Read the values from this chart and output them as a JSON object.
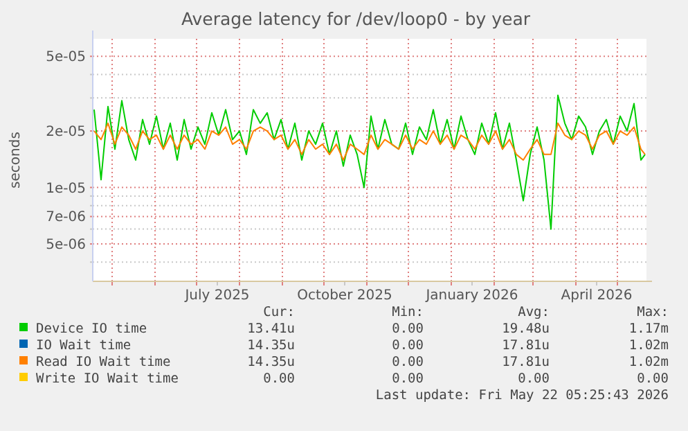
{
  "chart_data": {
    "type": "line",
    "title": "Average latency for /dev/loop0 - by year",
    "ylabel": "seconds",
    "log": "y",
    "grid": true,
    "legend": "bottom",
    "xlim": [
      "2025-04-17",
      "2026-05-22"
    ],
    "ylim": [
      3.16e-06,
      6.2e-05
    ],
    "yticks": [
      {
        "value": 4e-06,
        "label": null
      },
      {
        "value": 5e-06,
        "label": "5e-06"
      },
      {
        "value": 6e-06,
        "label": null
      },
      {
        "value": 7e-06,
        "label": "7e-06"
      },
      {
        "value": 8e-06,
        "label": null
      },
      {
        "value": 9e-06,
        "label": null
      },
      {
        "value": 1e-05,
        "label": "1e-05"
      },
      {
        "value": 2e-05,
        "label": "2e-05"
      },
      {
        "value": 3e-05,
        "label": null
      },
      {
        "value": 4e-05,
        "label": null
      },
      {
        "value": 5e-05,
        "label": "5e-05"
      }
    ],
    "xticks": [
      {
        "value": "2025-05-01",
        "label": null
      },
      {
        "value": "2025-06-01",
        "label": null
      },
      {
        "value": "2025-07-01",
        "label": null
      },
      {
        "value": "2025-07-16",
        "label": "July 2025"
      },
      {
        "value": "2025-08-01",
        "label": null
      },
      {
        "value": "2025-09-01",
        "label": null
      },
      {
        "value": "2025-10-01",
        "label": null
      },
      {
        "value": "2025-10-16",
        "label": "October 2025"
      },
      {
        "value": "2025-11-01",
        "label": null
      },
      {
        "value": "2025-12-01",
        "label": null
      },
      {
        "value": "2026-01-01",
        "label": null
      },
      {
        "value": "2026-01-16",
        "label": "January 2026"
      },
      {
        "value": "2026-02-01",
        "label": null
      },
      {
        "value": "2026-03-01",
        "label": null
      },
      {
        "value": "2026-04-01",
        "label": null
      },
      {
        "value": "2026-04-16",
        "label": "April 2026"
      },
      {
        "value": "2026-05-01",
        "label": null
      }
    ],
    "x": [
      "2025-04-18",
      "2025-04-23",
      "2025-04-28",
      "2025-05-03",
      "2025-05-08",
      "2025-05-13",
      "2025-05-18",
      "2025-05-23",
      "2025-05-28",
      "2025-06-02",
      "2025-06-07",
      "2025-06-12",
      "2025-06-17",
      "2025-06-22",
      "2025-06-27",
      "2025-07-02",
      "2025-07-07",
      "2025-07-12",
      "2025-07-17",
      "2025-07-22",
      "2025-07-27",
      "2025-08-01",
      "2025-08-06",
      "2025-08-11",
      "2025-08-16",
      "2025-08-21",
      "2025-08-26",
      "2025-08-31",
      "2025-09-05",
      "2025-09-10",
      "2025-09-15",
      "2025-09-20",
      "2025-09-25",
      "2025-09-30",
      "2025-10-05",
      "2025-10-10",
      "2025-10-15",
      "2025-10-20",
      "2025-10-25",
      "2025-10-30",
      "2025-11-04",
      "2025-11-09",
      "2025-11-14",
      "2025-11-19",
      "2025-11-24",
      "2025-11-29",
      "2025-12-04",
      "2025-12-09",
      "2025-12-14",
      "2025-12-19",
      "2025-12-24",
      "2025-12-29",
      "2026-01-03",
      "2026-01-08",
      "2026-01-13",
      "2026-01-18",
      "2026-01-23",
      "2026-01-28",
      "2026-02-02",
      "2026-02-07",
      "2026-02-12",
      "2026-02-17",
      "2026-02-22",
      "2026-02-27",
      "2026-03-04",
      "2026-03-09",
      "2026-03-14",
      "2026-03-19",
      "2026-03-24",
      "2026-03-29",
      "2026-04-03",
      "2026-04-08",
      "2026-04-13",
      "2026-04-18",
      "2026-04-23",
      "2026-04-28",
      "2026-05-03",
      "2026-05-08",
      "2026-05-13",
      "2026-05-18",
      "2026-05-21"
    ],
    "series": [
      {
        "name": "Device IO time",
        "color": "#00cc00",
        "values": [
          2.6e-05,
          1.1e-05,
          2.7e-05,
          1.6e-05,
          2.9e-05,
          1.8e-05,
          1.4e-05,
          2.3e-05,
          1.7e-05,
          2.4e-05,
          1.6e-05,
          2.2e-05,
          1.4e-05,
          2.3e-05,
          1.6e-05,
          2.1e-05,
          1.7e-05,
          2.5e-05,
          1.9e-05,
          2.6e-05,
          1.8e-05,
          2e-05,
          1.5e-05,
          2.6e-05,
          2.2e-05,
          2.5e-05,
          1.8e-05,
          2.3e-05,
          1.6e-05,
          2.2e-05,
          1.4e-05,
          2e-05,
          1.7e-05,
          2.2e-05,
          1.5e-05,
          2e-05,
          1.3e-05,
          1.9e-05,
          1.5e-05,
          1e-05,
          2.4e-05,
          1.6e-05,
          2.3e-05,
          1.7e-05,
          1.6e-05,
          2.2e-05,
          1.5e-05,
          2.1e-05,
          1.8e-05,
          2.6e-05,
          1.7e-05,
          2.3e-05,
          1.6e-05,
          2.4e-05,
          1.8e-05,
          1.5e-05,
          2.2e-05,
          1.7e-05,
          2.5e-05,
          1.6e-05,
          2.2e-05,
          1.4e-05,
          8.5e-06,
          1.5e-05,
          2.1e-05,
          1.4e-05,
          6e-06,
          3.1e-05,
          2.2e-05,
          1.8e-05,
          2.4e-05,
          2.1e-05,
          1.5e-05,
          2e-05,
          2.3e-05,
          1.7e-05,
          2.4e-05,
          2e-05,
          2.8e-05,
          1.4e-05,
          1.5e-05
        ]
      },
      {
        "name": "IO Wait time",
        "color": "#0066b3",
        "values": [
          null,
          null,
          null,
          null,
          null,
          null,
          null,
          null,
          null,
          null,
          null,
          null,
          null,
          null,
          null,
          null,
          null,
          null,
          null,
          null,
          null,
          null,
          null,
          null,
          null,
          null,
          null,
          null,
          null,
          null,
          null,
          null,
          null,
          null,
          null,
          null,
          null,
          null,
          null,
          null,
          null,
          null,
          null,
          null,
          null,
          null,
          null,
          null,
          null,
          null,
          null,
          null,
          null,
          null,
          null,
          null,
          null,
          null,
          null,
          null,
          null,
          null,
          null,
          null,
          null,
          null,
          null,
          null,
          null,
          null,
          null,
          null,
          null,
          null,
          null,
          null,
          null,
          null,
          null,
          null,
          null
        ]
      },
      {
        "name": "Read IO Wait time",
        "color": "#ff8000",
        "values": [
          2e-05,
          1.8e-05,
          2.2e-05,
          1.7e-05,
          2.1e-05,
          1.9e-05,
          1.6e-05,
          2e-05,
          1.8e-05,
          1.9e-05,
          1.6e-05,
          1.9e-05,
          1.6e-05,
          1.9e-05,
          1.7e-05,
          1.8e-05,
          1.6e-05,
          2e-05,
          1.9e-05,
          2.1e-05,
          1.7e-05,
          1.8e-05,
          1.6e-05,
          2e-05,
          2.1e-05,
          2e-05,
          1.8e-05,
          1.9e-05,
          1.6e-05,
          1.8e-05,
          1.5e-05,
          1.8e-05,
          1.6e-05,
          1.7e-05,
          1.5e-05,
          1.7e-05,
          1.4e-05,
          1.7e-05,
          1.6e-05,
          1.5e-05,
          1.9e-05,
          1.6e-05,
          1.8e-05,
          1.7e-05,
          1.6e-05,
          1.9e-05,
          1.6e-05,
          1.8e-05,
          1.7e-05,
          2e-05,
          1.7e-05,
          1.9e-05,
          1.6e-05,
          1.9e-05,
          1.8e-05,
          1.6e-05,
          1.9e-05,
          1.7e-05,
          2e-05,
          1.6e-05,
          1.8e-05,
          1.5e-05,
          1.4e-05,
          1.6e-05,
          1.8e-05,
          1.5e-05,
          1.5e-05,
          2.2e-05,
          1.9e-05,
          1.8e-05,
          2e-05,
          1.9e-05,
          1.6e-05,
          1.9e-05,
          2e-05,
          1.7e-05,
          2e-05,
          1.9e-05,
          2.1e-05,
          1.6e-05,
          1.5e-05
        ]
      },
      {
        "name": "Write IO Wait time",
        "color": "#ffcc00",
        "values": [
          null,
          null,
          null,
          null,
          null,
          null,
          null,
          null,
          null,
          null,
          null,
          null,
          null,
          null,
          null,
          null,
          null,
          null,
          null,
          null,
          null,
          null,
          null,
          null,
          null,
          null,
          null,
          null,
          null,
          null,
          null,
          null,
          null,
          null,
          null,
          null,
          null,
          null,
          null,
          null,
          null,
          null,
          null,
          null,
          null,
          null,
          null,
          null,
          null,
          null,
          null,
          null,
          null,
          null,
          null,
          null,
          null,
          null,
          null,
          null,
          null,
          null,
          null,
          null,
          null,
          null,
          null,
          null,
          null,
          null,
          null,
          null,
          null,
          null,
          null,
          null,
          null,
          null,
          null,
          null,
          null
        ]
      }
    ],
    "annotations": [
      "Cur:",
      "Min:",
      "Avg:",
      "Max:",
      "13.41u",
      "0.00",
      "19.48u",
      "1.17m",
      "14.35u",
      "0.00",
      "17.81u",
      "1.02m",
      "14.35u",
      "0.00",
      "17.81u",
      "1.02m",
      "0.00",
      "0.00",
      "0.00",
      "0.00",
      "Last update: Fri May 22 05:25:43 2026"
    ]
  }
}
